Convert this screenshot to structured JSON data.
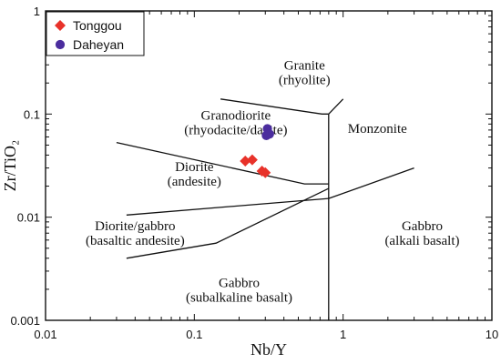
{
  "chart_data": {
    "type": "scatter",
    "title": "",
    "xlabel": "Nb/Y",
    "ylabel": "Zr/TiO₂",
    "xscale": "log",
    "yscale": "log",
    "xlim": [
      0.01,
      10
    ],
    "ylim": [
      0.001,
      1
    ],
    "x_ticks": [
      {
        "value": 0.01,
        "label": "0.01"
      },
      {
        "value": 0.1,
        "label": "0.1"
      },
      {
        "value": 1,
        "label": "1"
      },
      {
        "value": 10,
        "label": "10"
      }
    ],
    "y_ticks": [
      {
        "value": 0.001,
        "label": "0.001"
      },
      {
        "value": 0.01,
        "label": "0.01"
      },
      {
        "value": 0.1,
        "label": "0.1"
      },
      {
        "value": 1,
        "label": "1"
      }
    ],
    "legend_position": "top-left",
    "grid": false,
    "series": [
      {
        "name": "Tonggou",
        "marker": "diamond",
        "color": "#e8322a",
        "points": [
          {
            "x": 0.22,
            "y": 0.035
          },
          {
            "x": 0.245,
            "y": 0.036
          },
          {
            "x": 0.285,
            "y": 0.028
          },
          {
            "x": 0.3,
            "y": 0.027
          }
        ]
      },
      {
        "name": "Daheyan",
        "marker": "circle",
        "color": "#4b2d9e",
        "points": [
          {
            "x": 0.31,
            "y": 0.072
          },
          {
            "x": 0.305,
            "y": 0.062
          },
          {
            "x": 0.32,
            "y": 0.064
          }
        ]
      }
    ],
    "boundaries": [
      [
        [
          0.15,
          0.14
        ],
        [
          0.72,
          0.1
        ],
        [
          0.8,
          0.1
        ]
      ],
      [
        [
          0.8,
          0.1
        ],
        [
          1.0,
          0.14
        ]
      ],
      [
        [
          0.8,
          0.1
        ],
        [
          0.8,
          0.001
        ]
      ],
      [
        [
          0.03,
          0.053
        ],
        [
          0.55,
          0.021
        ],
        [
          0.8,
          0.021
        ]
      ],
      [
        [
          0.035,
          0.0105
        ],
        [
          0.8,
          0.0152
        ]
      ],
      [
        [
          0.8,
          0.0152
        ],
        [
          3.0,
          0.03
        ]
      ],
      [
        [
          0.8,
          0.019
        ],
        [
          0.14,
          0.0056
        ],
        [
          0.035,
          0.004
        ]
      ]
    ],
    "field_labels": [
      {
        "lines": [
          "Granite",
          "(rhyolite)"
        ],
        "x": 0.55,
        "y": 0.27
      },
      {
        "lines": [
          "Granodiorite",
          "(rhyodacite/dacite)"
        ],
        "x": 0.19,
        "y": 0.088
      },
      {
        "lines": [
          "Monzonite"
        ],
        "x": 1.7,
        "y": 0.066
      },
      {
        "lines": [
          "Diorite",
          "(andesite)"
        ],
        "x": 0.1,
        "y": 0.028
      },
      {
        "lines": [
          "Diorite/gabbro",
          "(basaltic andesite)"
        ],
        "x": 0.04,
        "y": 0.0075
      },
      {
        "lines": [
          "Gabbro",
          "(alkali basalt)"
        ],
        "x": 3.4,
        "y": 0.0075
      },
      {
        "lines": [
          "Gabbro",
          "(subalkaline basalt)"
        ],
        "x": 0.2,
        "y": 0.0021
      }
    ]
  }
}
